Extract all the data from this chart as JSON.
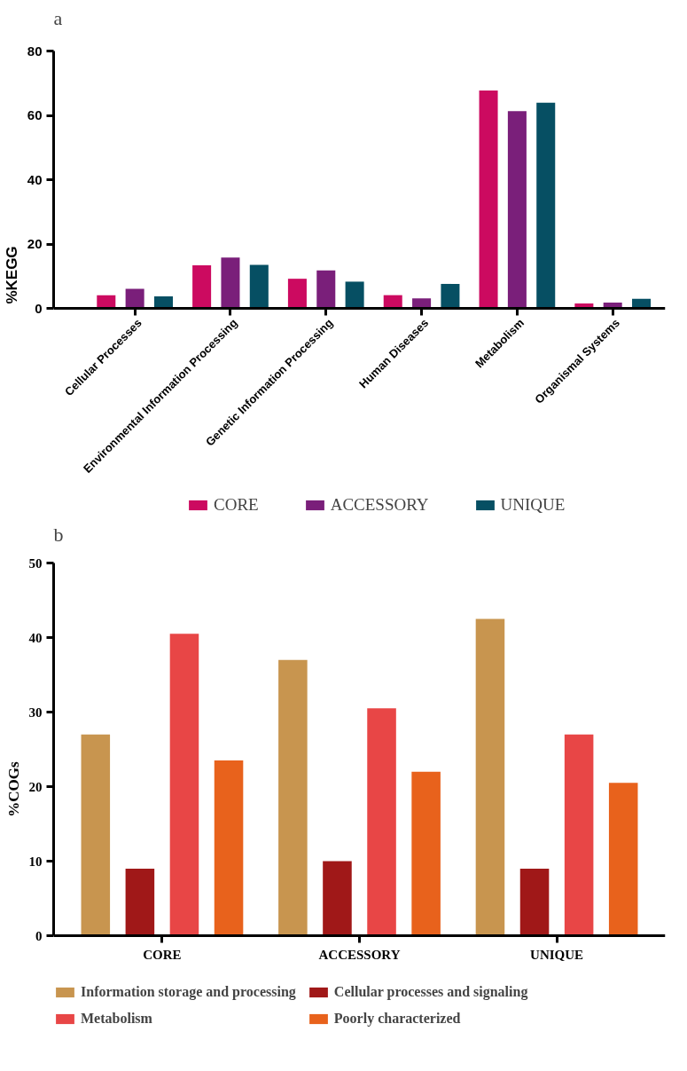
{
  "chart_data": [
    {
      "type": "bar",
      "title": "a",
      "ylabel": "%KEGG",
      "categories": [
        "Cellular Processes",
        "Environmental Information Processing",
        "Genetic Information Processing",
        "Human Diseases",
        "Metabolism",
        "Organismal Systems"
      ],
      "series": [
        {
          "name": "CORE",
          "color": "#cc0a60",
          "values": [
            4.1,
            13.4,
            9.2,
            4.1,
            67.7,
            1.5
          ]
        },
        {
          "name": "ACCESSORY",
          "color": "#7a1f7a",
          "values": [
            6.1,
            15.8,
            11.8,
            3.1,
            61.3,
            1.8
          ]
        },
        {
          "name": "UNIQUE",
          "color": "#064f63",
          "values": [
            3.7,
            13.5,
            8.3,
            7.6,
            63.9,
            3.0
          ]
        }
      ],
      "ylim": [
        0,
        80
      ],
      "yticks": [
        0,
        20,
        40,
        60,
        80
      ],
      "grid": false,
      "legend": "bottom"
    },
    {
      "type": "bar",
      "title": "b",
      "ylabel": "%COGs",
      "categories": [
        "CORE",
        "ACCESSORY",
        "UNIQUE"
      ],
      "series": [
        {
          "name": "Information storage and processing",
          "color": "#c8954f",
          "values": [
            27,
            37,
            42.5
          ]
        },
        {
          "name": "Cellular processes and signaling",
          "color": "#a01818",
          "values": [
            9,
            10,
            9
          ]
        },
        {
          "name": "Metabolism",
          "color": "#e84646",
          "values": [
            40.5,
            30.5,
            27
          ]
        },
        {
          "name": "Poorly characterized",
          "color": "#e8621c",
          "values": [
            23.5,
            22,
            20.5
          ]
        }
      ],
      "ylim": [
        0,
        50
      ],
      "yticks": [
        0,
        10,
        20,
        30,
        40,
        50
      ],
      "grid": false,
      "legend": "bottom"
    }
  ]
}
